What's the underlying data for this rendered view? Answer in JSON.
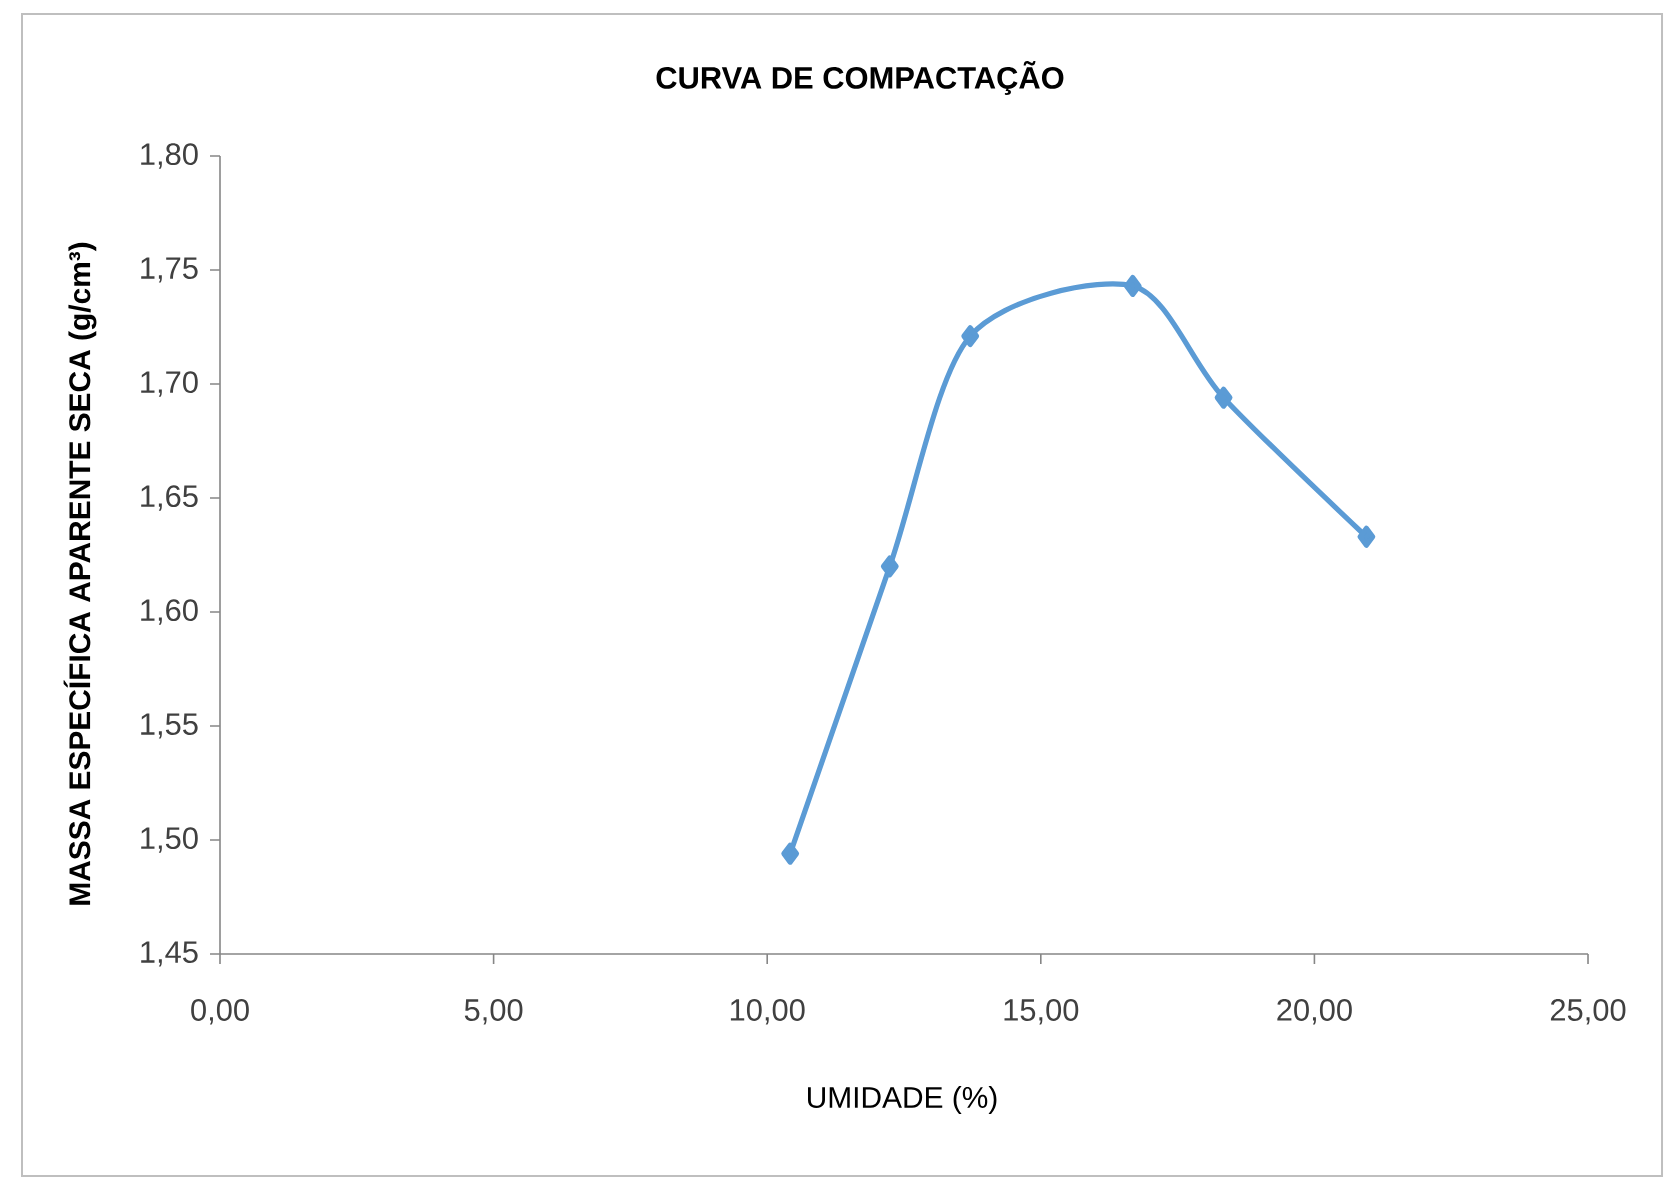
{
  "chart_data": {
    "type": "line",
    "title": "CURVA DE COMPACTAÇÃO",
    "xlabel": "UMIDADE (%)",
    "ylabel": "MASSA ESPECÍFICA APARENTE SECA (g/cm³)",
    "x": [
      10.42,
      12.24,
      13.71,
      16.68,
      18.34,
      20.95
    ],
    "series": [
      {
        "color": "#5b9bd5",
        "values": [
          1.494,
          1.62,
          1.721,
          1.743,
          1.694,
          1.633
        ]
      }
    ],
    "xlim": [
      0,
      25
    ],
    "ylim": [
      1.45,
      1.8
    ],
    "xticks": [
      {
        "value": 0,
        "label": "0,00"
      },
      {
        "value": 5,
        "label": "5,00"
      },
      {
        "value": 10,
        "label": "10,00"
      },
      {
        "value": 15,
        "label": "15,00"
      },
      {
        "value": 20,
        "label": "20,00"
      },
      {
        "value": 25,
        "label": "25,00"
      }
    ],
    "yticks": [
      {
        "value": 1.45,
        "label": "1,45"
      },
      {
        "value": 1.5,
        "label": "1,50"
      },
      {
        "value": 1.55,
        "label": "1,55"
      },
      {
        "value": 1.6,
        "label": "1,60"
      },
      {
        "value": 1.65,
        "label": "1,65"
      },
      {
        "value": 1.7,
        "label": "1,70"
      },
      {
        "value": 1.75,
        "label": "1,75"
      },
      {
        "value": 1.8,
        "label": "1,80"
      }
    ],
    "marker": "diamond",
    "line_style": "solid"
  }
}
